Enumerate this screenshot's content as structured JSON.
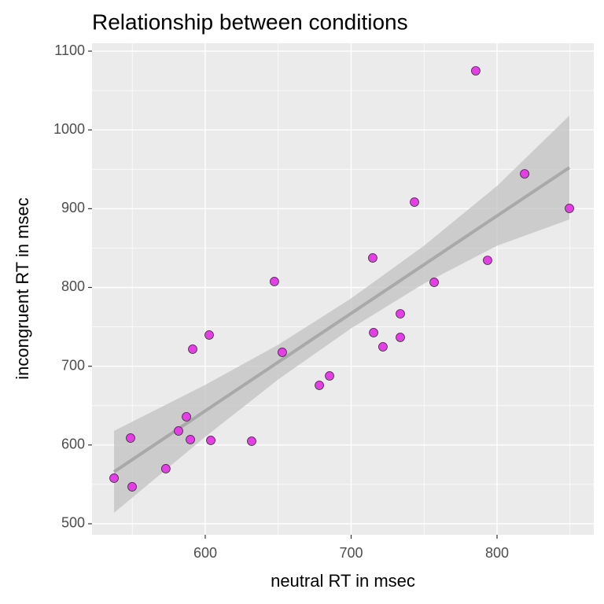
{
  "chart_data": {
    "type": "scatter",
    "title": "Relationship between conditions",
    "x_label": "neutral RT in msec",
    "y_label": "incongruent RT in msec",
    "x": [
      537.5,
      548.8,
      549.9,
      573.0,
      581.7,
      587.1,
      589.8,
      591.4,
      602.7,
      603.8,
      631.8,
      647.4,
      652.8,
      678.2,
      685.2,
      714.8,
      715.4,
      721.8,
      733.7,
      733.7,
      743.4,
      756.9,
      785.4,
      793.5,
      818.9,
      849.6
    ],
    "values": [
      557.9,
      608.8,
      546.9,
      569.9,
      617.8,
      635.8,
      606.8,
      721.6,
      739.6,
      605.8,
      604.8,
      807.5,
      717.6,
      675.7,
      687.7,
      837.4,
      742.6,
      724.6,
      766.5,
      736.6,
      908.3,
      806.5,
      1075.0,
      834.4,
      944.2,
      900.3
    ],
    "color": "#e63ee6",
    "fit": {
      "color": "#a9a9a9",
      "band_color": "#c2c2c2",
      "x": [
        537.5,
        600,
        650,
        700,
        750,
        800,
        849.6
      ],
      "y": [
        565.9,
        643.3,
        705.2,
        767.1,
        829.0,
        890.9,
        952.2
      ],
      "lower": [
        513.9,
        610.3,
        683.2,
        748.1,
        805.0,
        852.9,
        886.2
      ],
      "upper": [
        617.9,
        676.3,
        727.2,
        786.1,
        853.0,
        928.9,
        1018.2
      ]
    },
    "xlim": [
      522.4,
      866.3
    ],
    "ylim": [
      486,
      1110
    ],
    "xticks": [
      600,
      700,
      800
    ],
    "yticks": [
      500,
      600,
      700,
      800,
      900,
      1000,
      1100
    ],
    "x_minor_ticks": [
      550,
      650,
      750,
      850
    ],
    "y_minor_ticks": [
      550,
      650,
      750,
      850,
      950,
      1050
    ],
    "grid": true
  }
}
